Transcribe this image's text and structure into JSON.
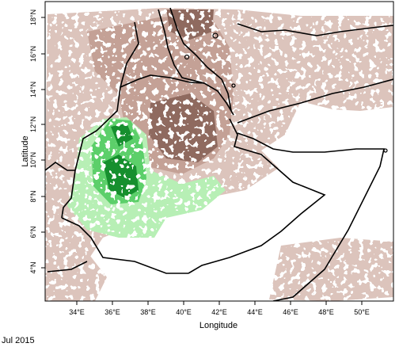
{
  "map": {
    "xlabel": "Longitude",
    "ylabel": "Latitude",
    "x_ticks": [
      "34°E",
      "36°E",
      "38°E",
      "40°E",
      "42°E",
      "44°E",
      "46°E",
      "48°E",
      "50°E"
    ],
    "y_ticks": [
      "4°N",
      "6°N",
      "8°N",
      "10°N",
      "12°N",
      "14°N",
      "16°N",
      "18°N"
    ],
    "date": "Jul 2015",
    "colors": {
      "dry_light": "#dcc4bc",
      "dry_mid": "#c4a196",
      "dry_dark": "#8f6a5f",
      "wet_light": "#b7efb5",
      "wet_mid": "#5ccf6a",
      "wet_dark": "#138f2e",
      "border": "#000000"
    }
  }
}
